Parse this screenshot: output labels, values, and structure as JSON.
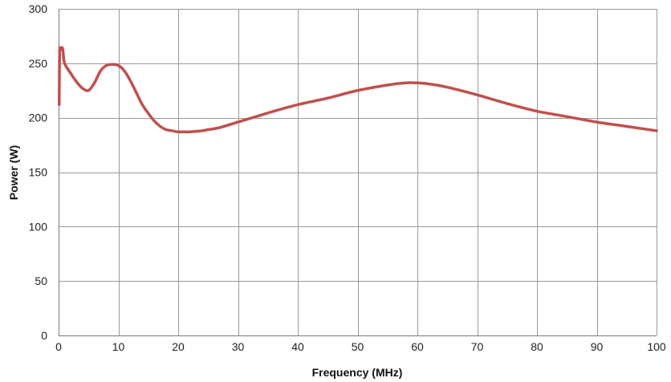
{
  "chart_data": {
    "type": "line",
    "title": "",
    "xlabel": "Frequency (MHz)",
    "ylabel": "Power (W)",
    "xlim": [
      0,
      100
    ],
    "ylim": [
      0,
      300
    ],
    "x_ticks": [
      "0",
      "10",
      "20",
      "30",
      "40",
      "50",
      "60",
      "70",
      "80",
      "90",
      "100"
    ],
    "y_ticks": [
      "0",
      "50",
      "100",
      "150",
      "200",
      "250",
      "300"
    ],
    "grid": true,
    "legend": "none",
    "series": [
      {
        "color": "#c0504d",
        "x": [
          0.1,
          0.15,
          0.2,
          0.3,
          0.5,
          0.7,
          1,
          2,
          3,
          4,
          5,
          6,
          7,
          8,
          9,
          10,
          11,
          12,
          13,
          14,
          15,
          16,
          17,
          18,
          19,
          20,
          21,
          22,
          23,
          24,
          25,
          27,
          30,
          33,
          36,
          40,
          45,
          50,
          55,
          58,
          60,
          62,
          65,
          70,
          75,
          80,
          85,
          90,
          95,
          100
        ],
        "y": [
          212,
          250,
          264,
          262,
          264,
          263,
          250,
          241,
          233,
          227,
          225,
          232,
          243,
          248,
          249,
          248,
          243,
          234,
          223,
          212,
          204,
          197,
          192,
          189,
          188,
          187,
          187,
          187,
          187.5,
          188,
          189,
          191,
          196,
          201,
          206,
          212,
          218,
          225,
          230,
          232,
          232,
          231,
          228,
          221,
          213,
          206,
          201,
          196,
          192,
          188
        ]
      }
    ]
  }
}
